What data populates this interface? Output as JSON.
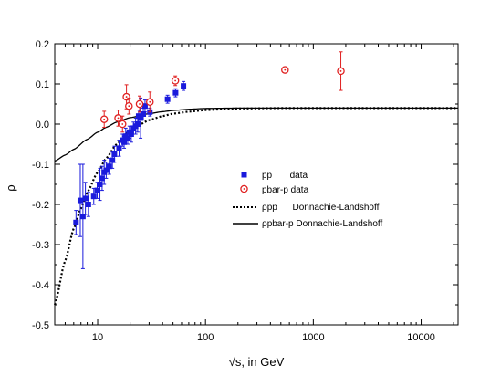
{
  "chart_data": {
    "type": "scatter",
    "xlabel": "√s, in GeV",
    "ylabel": "ρ",
    "x_scale": "log",
    "xlim": [
      4,
      22000
    ],
    "ylim": [
      -0.5,
      0.2
    ],
    "x_ticks": [
      10,
      100,
      1000,
      10000
    ],
    "x_tick_labels": [
      "10",
      "100",
      "1000",
      "10000"
    ],
    "y_ticks": [
      -0.5,
      -0.4,
      -0.3,
      -0.2,
      -0.1,
      0.0,
      0.1,
      0.2
    ],
    "y_tick_labels": [
      "-0.5",
      "-0.4",
      "-0.3",
      "-0.2",
      "-0.1",
      "0.0",
      "0.1",
      "0.2"
    ],
    "grid": false,
    "legend_position": "center-right",
    "colors": {
      "pp": "#1a1adc",
      "pbar_p": "#e02020",
      "curves": "#000000"
    },
    "legend": [
      {
        "marker": "square",
        "label": "pp       data"
      },
      {
        "marker": "open-circle",
        "label": "pbar-p data"
      },
      {
        "marker": "dotted-line",
        "label": "ρpp      Donnachie-Landshoff"
      },
      {
        "marker": "solid-line",
        "label": "ρpbar-p Donnachie-Landshoff"
      }
    ],
    "series": [
      {
        "name": "pp       data",
        "marker": "square",
        "points": [
          {
            "x": 6.3,
            "y": -0.245,
            "err": 0.03
          },
          {
            "x": 6.9,
            "y": -0.19,
            "err": 0.09
          },
          {
            "x": 7.3,
            "y": -0.23,
            "err": 0.13
          },
          {
            "x": 7.7,
            "y": -0.185,
            "err": 0.04
          },
          {
            "x": 8.2,
            "y": -0.2,
            "err": 0.03
          },
          {
            "x": 9.2,
            "y": -0.18,
            "err": 0.02
          },
          {
            "x": 9.9,
            "y": -0.165,
            "err": 0.02
          },
          {
            "x": 10.5,
            "y": -0.15,
            "err": 0.04
          },
          {
            "x": 11.0,
            "y": -0.135,
            "err": 0.03
          },
          {
            "x": 11.5,
            "y": -0.12,
            "err": 0.03
          },
          {
            "x": 12.0,
            "y": -0.115,
            "err": 0.02
          },
          {
            "x": 12.8,
            "y": -0.105,
            "err": 0.02
          },
          {
            "x": 13.7,
            "y": -0.09,
            "err": 0.02
          },
          {
            "x": 14.3,
            "y": -0.075,
            "err": 0.02
          },
          {
            "x": 15.8,
            "y": -0.06,
            "err": 0.02
          },
          {
            "x": 17.0,
            "y": -0.04,
            "err": 0.015
          },
          {
            "x": 17.6,
            "y": -0.045,
            "err": 0.015
          },
          {
            "x": 18.2,
            "y": -0.03,
            "err": 0.02
          },
          {
            "x": 19.0,
            "y": -0.035,
            "err": 0.015
          },
          {
            "x": 19.7,
            "y": -0.02,
            "err": 0.015
          },
          {
            "x": 20.5,
            "y": -0.025,
            "err": 0.02
          },
          {
            "x": 21.5,
            "y": -0.01,
            "err": 0.015
          },
          {
            "x": 22.5,
            "y": -0.005,
            "err": 0.02
          },
          {
            "x": 23.5,
            "y": 0.0,
            "err": 0.02
          },
          {
            "x": 24.0,
            "y": 0.02,
            "err": 0.015
          },
          {
            "x": 25.0,
            "y": 0.015,
            "err": 0.05
          },
          {
            "x": 26.5,
            "y": 0.025,
            "err": 0.015
          },
          {
            "x": 27.5,
            "y": 0.045,
            "err": 0.015
          },
          {
            "x": 30.5,
            "y": 0.03,
            "err": 0.01
          },
          {
            "x": 44.5,
            "y": 0.062,
            "err": 0.01
          },
          {
            "x": 52.8,
            "y": 0.078,
            "err": 0.01
          },
          {
            "x": 62.5,
            "y": 0.095,
            "err": 0.011
          }
        ]
      },
      {
        "name": "pbar-p data",
        "marker": "open-circle",
        "points": [
          {
            "x": 11.5,
            "y": 0.012,
            "err": 0.02
          },
          {
            "x": 15.5,
            "y": 0.015,
            "err": 0.02
          },
          {
            "x": 17.0,
            "y": 0.0,
            "err": 0.02
          },
          {
            "x": 18.5,
            "y": 0.068,
            "err": 0.03
          },
          {
            "x": 19.5,
            "y": 0.045,
            "err": 0.02
          },
          {
            "x": 24.5,
            "y": 0.05,
            "err": 0.02
          },
          {
            "x": 30.5,
            "y": 0.055,
            "err": 0.025
          },
          {
            "x": 52.5,
            "y": 0.108,
            "err": 0.012
          },
          {
            "x": 546,
            "y": 0.135,
            "err": 0.0
          },
          {
            "x": 1800,
            "y": 0.132,
            "err": 0.048
          }
        ]
      }
    ],
    "curves": [
      {
        "name": "ρpp      Donnachie-Landshoff",
        "style": "dotted",
        "points": [
          [
            4,
            -0.45
          ],
          [
            5,
            -0.34
          ],
          [
            6,
            -0.26
          ],
          [
            7,
            -0.21
          ],
          [
            8,
            -0.17
          ],
          [
            10,
            -0.12
          ],
          [
            12,
            -0.085
          ],
          [
            15,
            -0.05
          ],
          [
            20,
            -0.015
          ],
          [
            25,
            0.0
          ],
          [
            30,
            0.01
          ],
          [
            40,
            0.02
          ],
          [
            50,
            0.026
          ],
          [
            70,
            0.031
          ],
          [
            100,
            0.035
          ],
          [
            200,
            0.039
          ],
          [
            500,
            0.04
          ],
          [
            1000,
            0.04
          ],
          [
            22000,
            0.04
          ]
        ]
      },
      {
        "name": "ρpbar-p Donnachie-Landshoff",
        "style": "solid",
        "points": [
          [
            4,
            -0.092
          ],
          [
            5,
            -0.077
          ],
          [
            6,
            -0.063
          ],
          [
            8,
            -0.038
          ],
          [
            10,
            -0.02
          ],
          [
            12,
            -0.008
          ],
          [
            15,
            0.005
          ],
          [
            20,
            0.016
          ],
          [
            30,
            0.026
          ],
          [
            40,
            0.031
          ],
          [
            50,
            0.034
          ],
          [
            70,
            0.037
          ],
          [
            100,
            0.039
          ],
          [
            200,
            0.04
          ],
          [
            22000,
            0.04
          ]
        ]
      }
    ]
  }
}
